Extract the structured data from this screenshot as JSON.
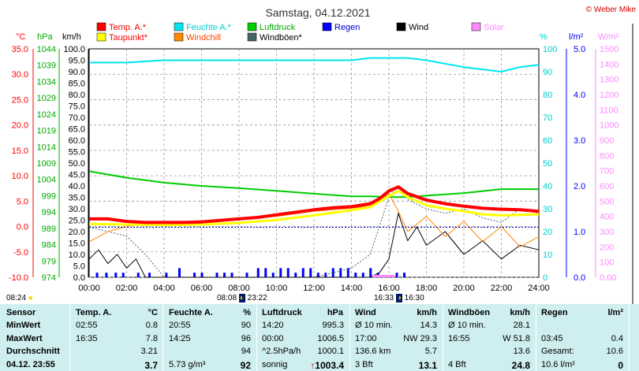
{
  "header": {
    "title": "Samstag, 04.12.2021",
    "copyright": "© Weber Mike"
  },
  "legend": [
    {
      "name": "Temp. A.*",
      "color": "#ff0000"
    },
    {
      "name": "Feuchte A.*",
      "color": "#00e5ee"
    },
    {
      "name": "Luftdruck",
      "color": "#00cc00"
    },
    {
      "name": "Regen",
      "color": "#0000ff"
    },
    {
      "name": "Wind",
      "color": "#000000"
    },
    {
      "name": "Solar",
      "color": "#ff88ff"
    },
    {
      "name": "Taupunkt*",
      "color": "#ffff00"
    },
    {
      "name": "Windchill",
      "color": "#ff8800"
    },
    {
      "name": "Windböen*",
      "color": "#446666"
    }
  ],
  "units": {
    "temp": "°C",
    "pressure": "hPa",
    "wind": "km/h",
    "humidity": "%",
    "rain": "l/m²",
    "solar": "W/m²"
  },
  "axes": {
    "temp_ticks": [
      "35.0",
      "30.0",
      "25.0",
      "20.0",
      "15.0",
      "10.0",
      "5.0",
      "0.0",
      "-5.0",
      "-10.0"
    ],
    "pressure_ticks": [
      "1044",
      "1039",
      "1034",
      "1029",
      "1024",
      "1019",
      "1014",
      "1009",
      "1004",
      "999",
      "994",
      "989",
      "984",
      "979",
      "974"
    ],
    "wind_ticks": [
      "100.0",
      "95.0",
      "90.0",
      "85.0",
      "80.0",
      "75.0",
      "70.0",
      "65.0",
      "60.0",
      "55.0",
      "50.0",
      "45.0",
      "40.0",
      "35.0",
      "30.0",
      "25.0",
      "20.0",
      "15.0",
      "10.0",
      "5.0",
      "0.0"
    ],
    "humidity_ticks": [
      "100",
      "90",
      "80",
      "70",
      "60",
      "50",
      "40",
      "30",
      "20",
      "10",
      "0"
    ],
    "rain_ticks": [
      "5.0",
      "4.0",
      "3.0",
      "2.0",
      "1.0",
      "0.0"
    ],
    "solar_ticks": [
      "1500",
      "1400",
      "1300",
      "1200",
      "1100",
      "1000",
      "900",
      "800",
      "700",
      "600",
      "500",
      "400",
      "300",
      "200",
      "100",
      "0.00"
    ],
    "time_ticks": [
      "00:00",
      "02:00",
      "04:00",
      "06:00",
      "08:00",
      "10:00",
      "12:00",
      "14:00",
      "16:00",
      "18:00",
      "20:00",
      "22:00",
      "24:00"
    ]
  },
  "chart_data": {
    "type": "line",
    "title": "Samstag, 04.12.2021",
    "x_unit": "hours",
    "xlim": [
      0,
      24
    ],
    "series": [
      {
        "name": "Temp. A.*",
        "axis": "°C",
        "color": "#ff0000",
        "x": [
          0,
          1,
          2,
          3,
          4,
          5,
          6,
          7,
          8,
          9,
          10,
          11,
          12,
          13,
          14,
          15,
          15.5,
          16,
          16.5,
          17,
          18,
          19,
          20,
          21,
          22,
          23,
          24
        ],
        "values": [
          1.5,
          1.5,
          1.0,
          0.8,
          0.8,
          0.8,
          0.9,
          1.2,
          1.5,
          1.8,
          2.3,
          2.8,
          3.3,
          3.7,
          3.9,
          4.5,
          5.5,
          7.0,
          7.8,
          6.5,
          5.2,
          4.5,
          4.0,
          3.6,
          3.4,
          3.3,
          3.0
        ]
      },
      {
        "name": "Taupunkt*",
        "axis": "°C",
        "color": "#ffff00",
        "x": [
          0,
          2,
          4,
          6,
          8,
          10,
          12,
          14,
          15,
          16,
          16.5,
          17,
          18,
          19,
          20,
          21,
          22,
          23,
          24
        ],
        "values": [
          0.5,
          0.4,
          0.3,
          0.4,
          0.7,
          1.3,
          2.2,
          3.2,
          3.8,
          6.0,
          7.0,
          5.8,
          4.2,
          3.5,
          3.0,
          2.4,
          2.2,
          2.3,
          2.4
        ]
      },
      {
        "name": "Luftdruck",
        "axis": "hPa",
        "color": "#00cc00",
        "x": [
          0,
          2,
          4,
          6,
          8,
          10,
          12,
          13,
          14,
          15,
          16,
          17,
          18,
          20,
          21,
          22,
          23,
          24
        ],
        "values": [
          1006.5,
          1004.5,
          1003,
          1002,
          1001.3,
          1000.5,
          999.6,
          999.2,
          998.8,
          998.8,
          998.6,
          998.6,
          999.0,
          999.8,
          1000.4,
          1001.0,
          1001.0,
          1001.0
        ]
      },
      {
        "name": "Feuchte A.*",
        "axis": "%",
        "color": "#00e5ee",
        "x": [
          0,
          1,
          2,
          4,
          6,
          8,
          10,
          12,
          14,
          15,
          16,
          17,
          18,
          20,
          21,
          22,
          23,
          24
        ],
        "values": [
          94,
          94,
          94,
          95,
          95,
          95,
          95,
          95,
          95,
          96,
          96,
          96,
          95,
          92,
          91,
          90,
          92,
          93
        ]
      },
      {
        "name": "Windchill",
        "axis": "°C",
        "color": "#ff8800",
        "x": [
          0,
          1,
          2,
          3,
          4,
          6,
          8,
          10,
          12,
          14,
          15,
          16,
          16.5,
          17,
          18,
          19,
          20,
          21,
          22,
          23,
          24
        ],
        "values": [
          -3,
          -1,
          0,
          0.8,
          0.8,
          0.8,
          1.4,
          2.0,
          3.0,
          3.6,
          4.0,
          6.5,
          3,
          -1,
          2,
          -2,
          1,
          -3,
          0,
          -4,
          -2
        ]
      },
      {
        "name": "Wind",
        "axis": "km/h",
        "color": "#000000",
        "x": [
          0,
          0.5,
          1,
          1.5,
          2,
          2.5,
          3,
          4,
          6,
          8,
          10,
          12,
          14,
          15,
          15.5,
          16,
          16.5,
          17,
          17.5,
          18,
          19,
          20,
          21,
          22,
          23,
          24
        ],
        "values": [
          8,
          12,
          6,
          10,
          4,
          8,
          0,
          0,
          0,
          0,
          0,
          0,
          0,
          0,
          2,
          8,
          28,
          16,
          22,
          14,
          20,
          10,
          16,
          8,
          14,
          12
        ]
      },
      {
        "name": "Windböen*",
        "axis": "km/h",
        "color": "#446666",
        "x": [
          0,
          2,
          3,
          4,
          6,
          8,
          10,
          12,
          14,
          15,
          16,
          16.5,
          17,
          18,
          19,
          20,
          21,
          22,
          23,
          24
        ],
        "values": [
          22,
          18,
          10,
          0,
          0,
          0,
          0,
          0,
          4,
          10,
          35,
          40,
          34,
          30,
          28,
          30,
          26,
          24,
          30,
          28
        ]
      },
      {
        "name": "Regen",
        "axis": "l/m²",
        "color": "#0000ff",
        "type": "bar",
        "x": [
          0.4,
          0.9,
          1.4,
          1.8,
          2.6,
          3.2,
          4.1,
          4.8,
          5.6,
          6.0,
          6.8,
          7.2,
          7.6,
          8.4,
          9.0,
          9.4,
          9.8,
          10.2,
          10.6,
          11.0,
          11.4,
          11.8,
          12.2,
          12.6,
          13.0,
          13.4,
          13.8,
          14.2,
          14.6,
          15.0,
          15.4,
          16.4,
          16.8
        ],
        "values": [
          0.1,
          0.1,
          0.1,
          0.1,
          0.1,
          0.1,
          0.1,
          0.2,
          0.1,
          0.1,
          0.1,
          0.1,
          0.1,
          0.1,
          0.2,
          0.2,
          0.1,
          0.2,
          0.2,
          0.1,
          0.2,
          0.2,
          0.1,
          0.1,
          0.2,
          0.2,
          0.2,
          0.1,
          0.1,
          0.2,
          0.1,
          0.1,
          0.1
        ]
      }
    ],
    "ylim_temp": [
      -10,
      35
    ],
    "ylim_pressure": [
      974,
      1044
    ],
    "ylim_wind": [
      0,
      100
    ],
    "ylim_humidity": [
      0,
      100
    ],
    "ylim_rain": [
      0,
      5
    ],
    "ylim_solar": [
      0,
      1500
    ],
    "grid": true
  },
  "sun": {
    "rise_time": "08:24",
    "set_time": "16:33",
    "civil_start": "08:08",
    "civil_end": "16:30",
    "noon": "23:22"
  },
  "table": {
    "headers": {
      "sensor": "Sensor",
      "temp": "Temp. A.",
      "temp_unit": "°C",
      "hum": "Feuchte A.",
      "hum_unit": "%",
      "pres": "Luftdruck",
      "pres_unit": "hPa",
      "wind": "Wind",
      "wind_unit": "km/h",
      "gust": "Windböen",
      "gust_unit": "km/h",
      "rain": "Regen",
      "rain_unit": "l/m²"
    },
    "rows": [
      {
        "label": "MinWert",
        "temp_t": "02:55",
        "temp_v": "0.8",
        "hum_t": "20:55",
        "hum_v": "90",
        "pres_t": "14:20",
        "pres_v": "995.3",
        "wind_t": "Ø 10 min.",
        "wind_v": "14.3",
        "gust_t": "Ø 10 min.",
        "gust_v": "28.1",
        "rain_t": "",
        "rain_v": ""
      },
      {
        "label": "MaxWert",
        "temp_t": "16:35",
        "temp_v": "7.8",
        "hum_t": "14:25",
        "hum_v": "96",
        "pres_t": "00:00",
        "pres_v": "1006.5",
        "wind_t": "17:00",
        "wind_m": "NW 29.3",
        "wind_v": "",
        "gust_t": "16:55",
        "gust_m": "W 51.8",
        "gust_v": "",
        "rain_t": "03:45",
        "rain_v": "0.4"
      },
      {
        "label": "Durchschnitt",
        "temp_t": "",
        "temp_v": "3.21",
        "hum_t": "",
        "hum_v": "94",
        "pres_t": "^2.5hPa/h",
        "pres_v": "1000.1",
        "wind_t": "136.6 km",
        "wind_v": "5.7",
        "gust_t": "",
        "gust_v": "13.6",
        "rain_t": "Gesamt:",
        "rain_v": "10.6"
      },
      {
        "label": "04.12. 23:55",
        "temp_t": "",
        "temp_v": "3.7",
        "hum_t": "5.73 g/m³",
        "hum_v": "92",
        "pres_t": "sonnig",
        "pres_v": "1003.4",
        "wind_t": "3 Bft",
        "wind_v": "13.1",
        "gust_t": "4 Bft",
        "gust_v": "24.8",
        "rain_t": "10.6 l/m²",
        "rain_v": "0"
      }
    ]
  }
}
